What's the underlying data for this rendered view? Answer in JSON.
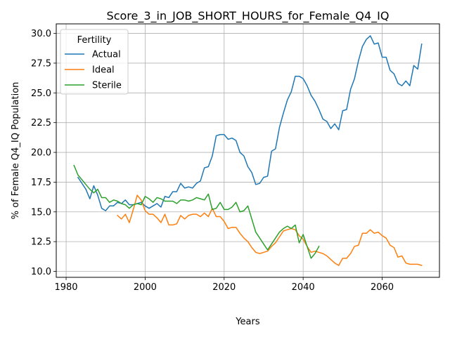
{
  "chart_data": {
    "type": "line",
    "title": "Score_3_in_JOB_SHORT_HOURS_for_Female_Q4_IQ",
    "xlabel": "Years",
    "ylabel": "% of Female Q4_IQ Population",
    "xlim": [
      1977.5,
      2074.5
    ],
    "ylim": [
      9.5,
      30.8
    ],
    "xticks": [
      1980,
      2000,
      2020,
      2040,
      2060
    ],
    "yticks": [
      10.0,
      12.5,
      15.0,
      17.5,
      20.0,
      22.5,
      25.0,
      27.5,
      30.0
    ],
    "ytick_labels": [
      "10.0",
      "12.5",
      "15.0",
      "17.5",
      "20.0",
      "22.5",
      "25.0",
      "27.5",
      "30.0"
    ],
    "grid": true,
    "legend": {
      "title": "Fertility",
      "position": "upper-left"
    },
    "series": [
      {
        "name": "Actual",
        "color": "#1f77b4",
        "x": [
          1983,
          1984,
          1985,
          1986,
          1987,
          1988,
          1989,
          1990,
          1991,
          1992,
          1993,
          1994,
          1995,
          1996,
          1997,
          1998,
          1999,
          2000,
          2001,
          2002,
          2003,
          2004,
          2005,
          2006,
          2007,
          2008,
          2009,
          2010,
          2011,
          2012,
          2013,
          2014,
          2015,
          2016,
          2017,
          2018,
          2019,
          2020,
          2021,
          2022,
          2023,
          2024,
          2025,
          2026,
          2027,
          2028,
          2029,
          2030,
          2031,
          2032,
          2033,
          2034,
          2035,
          2036,
          2037,
          2038,
          2039,
          2040,
          2041,
          2042,
          2043,
          2044,
          2045,
          2046,
          2047,
          2048,
          2049,
          2050,
          2051,
          2052,
          2053,
          2054,
          2055,
          2056,
          2057,
          2058,
          2059,
          2060,
          2061,
          2062,
          2063,
          2064,
          2065,
          2066,
          2067,
          2068,
          2069,
          2070
        ],
        "values": [
          17.9,
          17.4,
          16.9,
          16.1,
          17.2,
          16.4,
          15.3,
          15.1,
          15.5,
          15.5,
          15.8,
          15.7,
          16.0,
          15.6,
          15.6,
          15.7,
          15.8,
          15.5,
          15.3,
          15.5,
          15.7,
          15.4,
          16.3,
          16.2,
          16.7,
          16.7,
          17.4,
          17.0,
          17.1,
          17.0,
          17.4,
          17.6,
          18.7,
          18.8,
          19.7,
          21.4,
          21.5,
          21.5,
          21.1,
          21.2,
          21.0,
          20.0,
          19.7,
          18.8,
          18.3,
          17.3,
          17.4,
          17.9,
          18.0,
          20.1,
          20.3,
          22.1,
          23.3,
          24.4,
          25.1,
          26.4,
          26.4,
          26.2,
          25.6,
          24.8,
          24.3,
          23.6,
          22.8,
          22.6,
          22.0,
          22.4,
          21.9,
          23.5,
          23.6,
          25.3,
          26.2,
          27.7,
          28.9,
          29.5,
          29.8,
          29.1,
          29.2,
          28.0,
          28.0,
          26.9,
          26.6,
          25.8,
          25.6,
          26.0,
          25.6,
          27.3,
          27.0,
          29.1
        ]
      },
      {
        "name": "Ideal",
        "color": "#ff7f0e",
        "x": [
          1993,
          1994,
          1995,
          1996,
          1997,
          1998,
          1999,
          2000,
          2001,
          2002,
          2003,
          2004,
          2005,
          2006,
          2007,
          2008,
          2009,
          2010,
          2011,
          2012,
          2013,
          2014,
          2015,
          2016,
          2017,
          2018,
          2019,
          2020,
          2021,
          2022,
          2023,
          2024,
          2025,
          2026,
          2027,
          2028,
          2029,
          2030,
          2031,
          2032,
          2033,
          2034,
          2035,
          2036,
          2037,
          2038,
          2039,
          2040,
          2041,
          2042,
          2043,
          2044,
          2045,
          2046,
          2047,
          2048,
          2049,
          2050,
          2051,
          2052,
          2053,
          2054,
          2055,
          2056,
          2057,
          2058,
          2059,
          2060,
          2061,
          2062,
          2063,
          2064,
          2065,
          2066,
          2067,
          2068,
          2069,
          2070
        ],
        "values": [
          14.7,
          14.4,
          14.8,
          14.1,
          15.2,
          16.4,
          16.0,
          15.1,
          14.8,
          14.8,
          14.5,
          14.1,
          14.8,
          13.9,
          13.9,
          14.0,
          14.7,
          14.4,
          14.7,
          14.8,
          14.8,
          14.6,
          14.9,
          14.6,
          15.3,
          14.6,
          14.6,
          14.2,
          13.6,
          13.7,
          13.7,
          13.2,
          12.8,
          12.5,
          12.0,
          11.6,
          11.5,
          11.6,
          11.7,
          12.1,
          12.4,
          12.9,
          13.4,
          13.5,
          13.6,
          13.5,
          13.0,
          12.7,
          12.1,
          11.6,
          11.7,
          11.6,
          11.5,
          11.3,
          11.0,
          10.7,
          10.5,
          11.1,
          11.1,
          11.5,
          12.1,
          12.2,
          13.2,
          13.2,
          13.5,
          13.2,
          13.3,
          13.0,
          12.8,
          12.2,
          12.0,
          11.2,
          11.3,
          10.7,
          10.6,
          10.6,
          10.6,
          10.5
        ]
      },
      {
        "name": "Sterile",
        "color": "#2ca02c",
        "x": [
          1982,
          1983,
          1984,
          1985,
          1986,
          1987,
          1988,
          1989,
          1990,
          1991,
          1992,
          1993,
          1994,
          1995,
          1996,
          1997,
          1998,
          1999,
          2000,
          2001,
          2002,
          2003,
          2004,
          2005,
          2006,
          2007,
          2008,
          2009,
          2010,
          2011,
          2012,
          2013,
          2014,
          2015,
          2016,
          2017,
          2018,
          2019,
          2020,
          2021,
          2022,
          2023,
          2024,
          2025,
          2026,
          2027,
          2028,
          2029,
          2030,
          2031,
          2032,
          2033,
          2034,
          2035,
          2036,
          2037,
          2038,
          2039,
          2040,
          2041,
          2042,
          2043,
          2044
        ],
        "values": [
          18.9,
          18.1,
          17.7,
          17.3,
          16.9,
          16.6,
          16.9,
          16.2,
          16.2,
          15.8,
          16.0,
          15.9,
          15.7,
          15.6,
          15.3,
          15.6,
          15.7,
          15.6,
          16.3,
          16.1,
          15.8,
          16.2,
          16.1,
          15.9,
          15.9,
          15.9,
          15.7,
          16.0,
          16.0,
          15.9,
          16.0,
          16.2,
          16.1,
          16.0,
          16.5,
          15.2,
          15.3,
          15.8,
          15.2,
          15.2,
          15.4,
          15.8,
          15.0,
          15.1,
          15.5,
          14.4,
          13.3,
          12.8,
          12.3,
          11.8,
          12.3,
          12.8,
          13.3,
          13.6,
          13.8,
          13.6,
          13.9,
          12.4,
          13.1,
          12.1,
          11.1,
          11.5,
          12.1
        ]
      }
    ]
  }
}
